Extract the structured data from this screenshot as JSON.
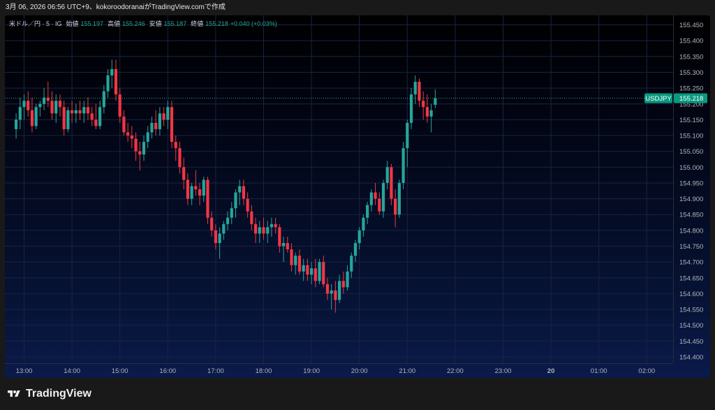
{
  "header": {
    "caption": "3月 06, 2026 06:56 UTC+9、kokoroodoranaiがTradingView.comで作成"
  },
  "legend": {
    "symbol": "米ドル／円 · 5 · IG",
    "open_label": "始値",
    "open": "155.197",
    "high_label": "高値",
    "high": "155.246",
    "low_label": "安値",
    "low": "155.187",
    "close_label": "終値",
    "close": "155.218",
    "change": "+0.040 (+0.03%)"
  },
  "price_tag": {
    "symbol": "USDJPY",
    "price": "155.218"
  },
  "footer": {
    "brand": "TradingView"
  },
  "colors": {
    "up": "#26a69a",
    "down": "#f23645",
    "grid": "#1a2440",
    "axis_text": "#b2b5be",
    "tag_bg": "#089981"
  },
  "chart_data": {
    "type": "candlestick",
    "interval_minutes": 5,
    "current_price": 155.218,
    "ylim": [
      154.38,
      155.48
    ],
    "y_ticks": [
      "155.450",
      "155.400",
      "155.350",
      "155.300",
      "155.250",
      "155.200",
      "155.150",
      "155.100",
      "155.050",
      "155.000",
      "154.950",
      "154.900",
      "154.850",
      "154.800",
      "154.750",
      "154.700",
      "154.650",
      "154.600",
      "154.550",
      "154.500",
      "154.450",
      "154.400"
    ],
    "x_ticks": [
      "13:00",
      "14:00",
      "15:00",
      "16:00",
      "17:00",
      "18:00",
      "19:00",
      "20:00",
      "21:00",
      "22:00",
      "23:00",
      "20",
      "01:00",
      "02:00"
    ],
    "grid": true,
    "candles": [
      [
        155.12,
        155.17,
        155.09,
        155.15
      ],
      [
        155.15,
        155.22,
        155.12,
        155.19
      ],
      [
        155.19,
        155.23,
        155.15,
        155.21
      ],
      [
        155.21,
        155.24,
        155.16,
        155.18
      ],
      [
        155.18,
        155.22,
        155.11,
        155.13
      ],
      [
        155.13,
        155.2,
        155.12,
        155.19
      ],
      [
        155.19,
        155.21,
        155.16,
        155.2
      ],
      [
        155.2,
        155.25,
        155.18,
        155.22
      ],
      [
        155.22,
        155.27,
        155.19,
        155.21
      ],
      [
        155.21,
        155.24,
        155.15,
        155.17
      ],
      [
        155.17,
        155.23,
        155.14,
        155.21
      ],
      [
        155.21,
        155.23,
        155.16,
        155.19
      ],
      [
        155.19,
        155.21,
        155.1,
        155.12
      ],
      [
        155.12,
        155.19,
        155.11,
        155.18
      ],
      [
        155.18,
        155.21,
        155.14,
        155.17
      ],
      [
        155.17,
        155.2,
        155.14,
        155.18
      ],
      [
        155.18,
        155.21,
        155.15,
        155.17
      ],
      [
        155.17,
        155.21,
        155.14,
        155.19
      ],
      [
        155.19,
        155.22,
        155.15,
        155.17
      ],
      [
        155.17,
        155.19,
        155.13,
        155.15
      ],
      [
        155.15,
        155.2,
        155.12,
        155.13
      ],
      [
        155.13,
        155.21,
        155.12,
        155.19
      ],
      [
        155.19,
        155.26,
        155.17,
        155.24
      ],
      [
        155.24,
        155.31,
        155.22,
        155.29
      ],
      [
        155.29,
        155.34,
        155.25,
        155.31
      ],
      [
        155.31,
        155.34,
        155.21,
        155.23
      ],
      [
        155.23,
        155.25,
        155.14,
        155.16
      ],
      [
        155.16,
        155.18,
        155.1,
        155.11
      ],
      [
        155.11,
        155.14,
        155.08,
        155.1
      ],
      [
        155.1,
        155.13,
        155.06,
        155.09
      ],
      [
        155.09,
        155.11,
        155.02,
        155.05
      ],
      [
        155.05,
        155.08,
        154.99,
        155.04
      ],
      [
        155.04,
        155.1,
        155.02,
        155.08
      ],
      [
        155.08,
        155.13,
        155.06,
        155.11
      ],
      [
        155.11,
        155.16,
        155.09,
        155.14
      ],
      [
        155.14,
        155.18,
        155.1,
        155.12
      ],
      [
        155.12,
        155.19,
        155.1,
        155.17
      ],
      [
        155.17,
        155.19,
        155.13,
        155.15
      ],
      [
        155.15,
        155.21,
        155.12,
        155.19
      ],
      [
        155.19,
        155.21,
        155.06,
        155.08
      ],
      [
        155.08,
        155.1,
        155.02,
        155.06
      ],
      [
        155.06,
        155.08,
        154.98,
        155.0
      ],
      [
        155.0,
        155.03,
        154.93,
        154.96
      ],
      [
        154.96,
        154.98,
        154.88,
        154.9
      ],
      [
        154.9,
        154.95,
        154.88,
        154.94
      ],
      [
        154.94,
        154.99,
        154.91,
        154.93
      ],
      [
        154.93,
        154.95,
        154.88,
        154.91
      ],
      [
        154.91,
        154.97,
        154.89,
        154.96
      ],
      [
        154.96,
        154.97,
        154.82,
        154.84
      ],
      [
        154.84,
        154.86,
        154.78,
        154.8
      ],
      [
        154.8,
        154.82,
        154.74,
        154.76
      ],
      [
        154.76,
        154.81,
        154.71,
        154.79
      ],
      [
        154.79,
        154.83,
        154.77,
        154.82
      ],
      [
        154.82,
        154.86,
        154.8,
        154.84
      ],
      [
        154.84,
        154.89,
        154.82,
        154.87
      ],
      [
        154.87,
        154.93,
        154.84,
        154.92
      ],
      [
        154.92,
        154.96,
        154.88,
        154.94
      ],
      [
        154.94,
        154.96,
        154.88,
        154.9
      ],
      [
        154.9,
        154.92,
        154.84,
        154.86
      ],
      [
        154.86,
        154.88,
        154.8,
        154.82
      ],
      [
        154.82,
        154.84,
        154.76,
        154.79
      ],
      [
        154.79,
        154.83,
        154.76,
        154.81
      ],
      [
        154.81,
        154.84,
        154.77,
        154.79
      ],
      [
        154.79,
        154.83,
        154.76,
        154.81
      ],
      [
        154.81,
        154.84,
        154.78,
        154.82
      ],
      [
        154.82,
        154.84,
        154.79,
        154.81
      ],
      [
        154.81,
        154.82,
        154.73,
        154.75
      ],
      [
        154.75,
        154.78,
        154.7,
        154.76
      ],
      [
        154.76,
        154.78,
        154.73,
        154.74
      ],
      [
        154.74,
        154.76,
        154.67,
        154.69
      ],
      [
        154.69,
        154.73,
        154.66,
        154.72
      ],
      [
        154.72,
        154.74,
        154.66,
        154.67
      ],
      [
        154.67,
        154.71,
        154.64,
        154.69
      ],
      [
        154.69,
        154.71,
        154.64,
        154.66
      ],
      [
        154.66,
        154.7,
        154.63,
        154.68
      ],
      [
        154.68,
        154.71,
        154.62,
        154.64
      ],
      [
        154.64,
        154.71,
        154.63,
        154.7
      ],
      [
        154.7,
        154.72,
        154.62,
        154.63
      ],
      [
        154.63,
        154.65,
        154.58,
        154.6
      ],
      [
        154.6,
        154.63,
        154.55,
        154.61
      ],
      [
        154.61,
        154.64,
        154.54,
        154.58
      ],
      [
        154.58,
        154.66,
        154.57,
        154.64
      ],
      [
        154.64,
        154.67,
        154.6,
        154.62
      ],
      [
        154.62,
        154.69,
        154.61,
        154.67
      ],
      [
        154.67,
        154.73,
        154.65,
        154.72
      ],
      [
        154.72,
        154.77,
        154.7,
        154.76
      ],
      [
        154.76,
        154.81,
        154.74,
        154.8
      ],
      [
        154.8,
        154.85,
        154.78,
        154.84
      ],
      [
        154.84,
        154.89,
        154.82,
        154.88
      ],
      [
        154.88,
        154.93,
        154.86,
        154.92
      ],
      [
        154.92,
        154.95,
        154.88,
        154.9
      ],
      [
        154.9,
        154.92,
        154.85,
        154.86
      ],
      [
        154.86,
        154.96,
        154.84,
        154.95
      ],
      [
        154.95,
        155.02,
        154.93,
        155.0
      ],
      [
        155.0,
        155.01,
        154.88,
        154.9
      ],
      [
        154.9,
        154.93,
        154.81,
        154.85
      ],
      [
        154.85,
        154.96,
        154.84,
        154.95
      ],
      [
        154.95,
        155.08,
        154.93,
        155.06
      ],
      [
        155.06,
        155.15,
        155.0,
        155.14
      ],
      [
        155.14,
        155.25,
        155.12,
        155.23
      ],
      [
        155.23,
        155.29,
        155.2,
        155.27
      ],
      [
        155.27,
        155.28,
        155.19,
        155.21
      ],
      [
        155.21,
        155.24,
        155.15,
        155.19
      ],
      [
        155.19,
        155.23,
        155.14,
        155.16
      ],
      [
        155.16,
        155.2,
        155.11,
        155.18
      ],
      [
        155.197,
        155.246,
        155.187,
        155.218
      ]
    ]
  }
}
